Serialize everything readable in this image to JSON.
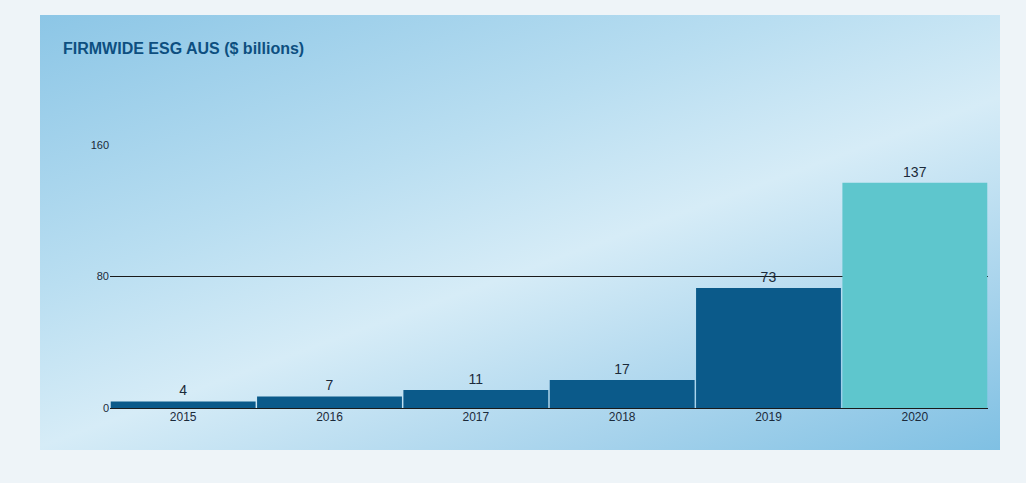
{
  "chart_data": {
    "type": "bar",
    "title": "FIRMWIDE ESG AUS ($ billions)",
    "categories": [
      "2015",
      "2016",
      "2017",
      "2018",
      "2019",
      "2020"
    ],
    "values": [
      4,
      7,
      11,
      17,
      73,
      137
    ],
    "colors": [
      "#0b5a8a",
      "#0b5a8a",
      "#0b5a8a",
      "#0b5a8a",
      "#0b5a8a",
      "#5ec6cd"
    ],
    "ylim": [
      0,
      160
    ],
    "yticks": [
      0,
      80,
      160
    ],
    "grid": true,
    "data_labels": true
  }
}
